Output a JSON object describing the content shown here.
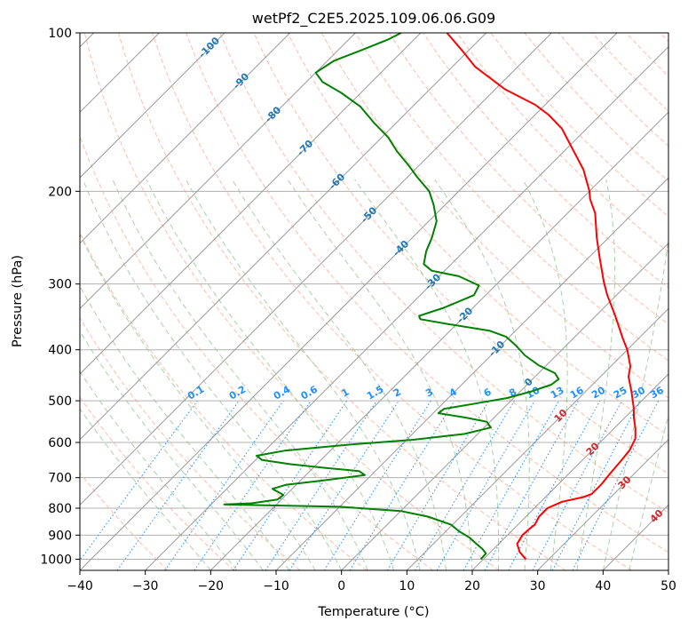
{
  "chart_data": {
    "type": "line",
    "title": "wetPf2_C2E5.2025.109.06.06.G09",
    "xlabel": "Temperature (°C)",
    "ylabel": "Pressure (hPa)",
    "xlim": [
      -40,
      50
    ],
    "ylim": [
      1050,
      100
    ],
    "y_scale": "log",
    "x_ticks": [
      -40,
      -30,
      -20,
      -10,
      0,
      10,
      20,
      30,
      40,
      50
    ],
    "y_ticks": [
      100,
      200,
      300,
      400,
      500,
      600,
      700,
      800,
      900,
      1000
    ],
    "skew": "skew-T",
    "series": [
      {
        "color": "#ff0000",
        "points": [
          [
            26.5,
            1000
          ],
          [
            24.5,
            970
          ],
          [
            22.8,
            935
          ],
          [
            22.3,
            900
          ],
          [
            22.4,
            875
          ],
          [
            22.6,
            860
          ],
          [
            22.0,
            830
          ],
          [
            22.0,
            800
          ],
          [
            23.2,
            778
          ],
          [
            25.8,
            762
          ],
          [
            26.6,
            752
          ],
          [
            26.6,
            720
          ],
          [
            26.3,
            690
          ],
          [
            26.0,
            650
          ],
          [
            25.7,
            620
          ],
          [
            24.8,
            590
          ],
          [
            23.3,
            565
          ],
          [
            21.5,
            540
          ],
          [
            19.8,
            515
          ],
          [
            17.0,
            480
          ],
          [
            14.3,
            450
          ],
          [
            13.0,
            430
          ],
          [
            10.0,
            400
          ],
          [
            7.5,
            380
          ],
          [
            3.0,
            345
          ],
          [
            -1.4,
            315
          ],
          [
            -4.0,
            297
          ],
          [
            -8.2,
            268
          ],
          [
            -11.8,
            245
          ],
          [
            -15.8,
            220
          ],
          [
            -18.7,
            207
          ],
          [
            -20.0,
            200
          ],
          [
            -24.2,
            182
          ],
          [
            -28.8,
            167
          ],
          [
            -33.8,
            152
          ],
          [
            -38.0,
            143
          ],
          [
            -41.5,
            137
          ],
          [
            -48.5,
            128
          ],
          [
            -56.5,
            116
          ],
          [
            -61.0,
            108
          ],
          [
            -66.0,
            100
          ]
        ]
      },
      {
        "color": "#008000",
        "points": [
          [
            19.6,
            1000
          ],
          [
            19.5,
            975
          ],
          [
            18.2,
            955
          ],
          [
            16.6,
            935
          ],
          [
            14.6,
            910
          ],
          [
            12.0,
            885
          ],
          [
            9.8,
            860
          ],
          [
            5.0,
            830
          ],
          [
            0.0,
            810
          ],
          [
            -10.0,
            795
          ],
          [
            -28.0,
            787
          ],
          [
            -24.0,
            783
          ],
          [
            -20.6,
            770
          ],
          [
            -20.4,
            755
          ],
          [
            -23.0,
            735
          ],
          [
            -21.5,
            722
          ],
          [
            -17.0,
            710
          ],
          [
            -11.0,
            692
          ],
          [
            -12.5,
            680
          ],
          [
            -18.0,
            671
          ],
          [
            -24.0,
            660
          ],
          [
            -29.0,
            648
          ],
          [
            -30.5,
            636
          ],
          [
            -27.0,
            622
          ],
          [
            -17.5,
            605
          ],
          [
            -9.0,
            593
          ],
          [
            -2.0,
            578
          ],
          [
            1.0,
            562
          ],
          [
            -0.5,
            548
          ],
          [
            -4.5,
            538
          ],
          [
            -9.2,
            528
          ],
          [
            -9.0,
            518
          ],
          [
            -5.0,
            506
          ],
          [
            -1.0,
            494
          ],
          [
            1.7,
            480
          ],
          [
            3.7,
            466
          ],
          [
            4.0,
            455
          ],
          [
            2.5,
            443
          ],
          [
            -1.2,
            428
          ],
          [
            -4.8,
            410
          ],
          [
            -7.8,
            392
          ],
          [
            -10.5,
            378
          ],
          [
            -14.0,
            368
          ],
          [
            -21.0,
            358
          ],
          [
            -26.3,
            350
          ],
          [
            -27.0,
            345
          ],
          [
            -24.5,
            333
          ],
          [
            -21.8,
            315
          ],
          [
            -22.5,
            302
          ],
          [
            -27.0,
            290
          ],
          [
            -32.0,
            283
          ],
          [
            -34.2,
            275
          ],
          [
            -35.8,
            260
          ],
          [
            -37.0,
            245
          ],
          [
            -38.8,
            228
          ],
          [
            -41.8,
            212
          ],
          [
            -44.5,
            200
          ],
          [
            -48.5,
            188
          ],
          [
            -51.8,
            178
          ],
          [
            -55.5,
            168
          ],
          [
            -59.0,
            158
          ],
          [
            -63.5,
            148
          ],
          [
            -68.0,
            138
          ],
          [
            -73.0,
            130
          ],
          [
            -77.5,
            124
          ],
          [
            -80.0,
            119
          ],
          [
            -79.0,
            113
          ],
          [
            -76.5,
            108
          ],
          [
            -74.0,
            103
          ],
          [
            -73.0,
            100
          ]
        ]
      }
    ],
    "isotherm_labels": [
      "-100",
      "-90",
      "-80",
      "-70",
      "-60",
      "-50",
      "-40",
      "-30",
      "-20",
      "-10",
      "0",
      "10",
      "20",
      "30",
      "40"
    ],
    "mixing_ratio_labels": [
      "0.1",
      "0.2",
      "0.4",
      "0.6",
      "1",
      "1.5",
      "2",
      "3",
      "4",
      "6",
      "8",
      "10",
      "13",
      "16",
      "20",
      "25",
      "30",
      "36"
    ],
    "grid": true
  },
  "colors": {
    "temperature": "#ff0000",
    "dewpoint": "#008000",
    "isotherm_label": "#1f77b4",
    "isotherm_label_warm": "#d62728",
    "mixing_ratio": "#1e90ff",
    "dry_adiabat": "#ff9f80",
    "moist_adiabat": "#90c890",
    "grid": "#b0b0b0"
  }
}
